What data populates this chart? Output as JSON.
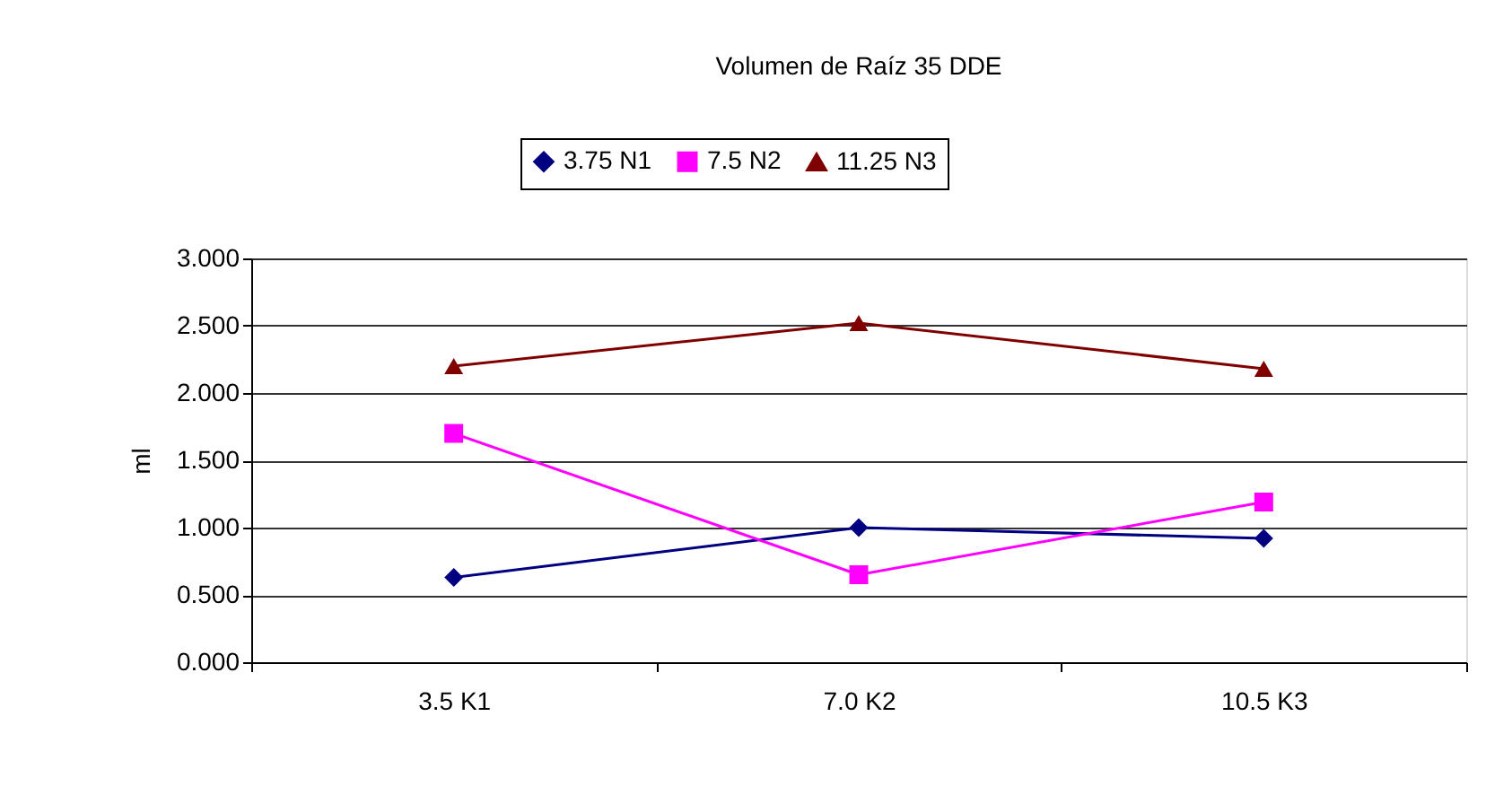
{
  "chart_data": {
    "type": "line",
    "title": "Volumen de Raíz 35 DDE",
    "ylabel": "ml",
    "categories": [
      "3.5 K1",
      "7.0 K2",
      "10.5 K3"
    ],
    "series": [
      {
        "name": "3.75 N1",
        "color": "#000080",
        "marker": "diamond",
        "values": [
          0.63,
          1.0,
          0.92
        ]
      },
      {
        "name": "7.5 N2",
        "color": "#ff00ff",
        "marker": "square",
        "values": [
          1.7,
          0.65,
          1.19
        ]
      },
      {
        "name": "11.25 N3",
        "color": "#800000",
        "marker": "triangle",
        "values": [
          2.2,
          2.52,
          2.18
        ]
      }
    ],
    "ylim": [
      0,
      3
    ],
    "yticks": [
      {
        "value": 0,
        "label": "0.000"
      },
      {
        "value": 0.5,
        "label": "0.500"
      },
      {
        "value": 1,
        "label": "1.000"
      },
      {
        "value": 1.5,
        "label": "1.500"
      },
      {
        "value": 2,
        "label": "2.000"
      },
      {
        "value": 2.5,
        "label": "2.500"
      },
      {
        "value": 3,
        "label": "3.000"
      }
    ],
    "grid": "y",
    "legend": "top",
    "line_style": "solid"
  }
}
